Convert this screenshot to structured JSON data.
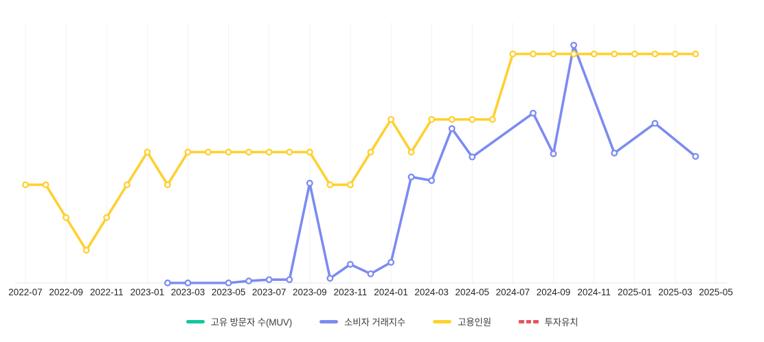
{
  "chart_data": {
    "type": "line",
    "title": "",
    "xlabel": "",
    "ylabel": "",
    "x": [
      "2022-07",
      "2022-08",
      "2022-09",
      "2022-10",
      "2022-11",
      "2022-12",
      "2023-01",
      "2023-02",
      "2023-03",
      "2023-04",
      "2023-05",
      "2023-06",
      "2023-07",
      "2023-08",
      "2023-09",
      "2023-10",
      "2023-11",
      "2023-12",
      "2024-01",
      "2024-02",
      "2024-03",
      "2024-04",
      "2024-05",
      "2024-06",
      "2024-07",
      "2024-08",
      "2024-09",
      "2024-10",
      "2024-11",
      "2024-12",
      "2025-01",
      "2025-02",
      "2025-03",
      "2025-04",
      "2025-05"
    ],
    "x_tick_step": 2,
    "x_tick_labels": [
      "2022-07",
      "2022-09",
      "2022-11",
      "2023-01",
      "2023-03",
      "2023-05",
      "2023-07",
      "2023-09",
      "2023-11",
      "2024-01",
      "2024-03",
      "2024-05",
      "2024-07",
      "2024-09",
      "2024-11",
      "2025-01",
      "2025-03",
      "2025-05"
    ],
    "ylim": [
      0,
      8
    ],
    "y_axis_labels_visible": false,
    "grid": "vertical",
    "grid_color": "#f1f1f4",
    "axis_line_color": "#e4e4e8",
    "tick_label_color": "#252525",
    "background": "#ffffff",
    "legend_position": "bottom",
    "marker": "open-circle",
    "series": [
      {
        "key": "unique-visitors-muv",
        "name": "고유 방문자 수(MUV)",
        "color": "#11c79c",
        "style": "solid",
        "values": [
          null,
          null,
          null,
          null,
          null,
          null,
          null,
          null,
          null,
          null,
          null,
          null,
          null,
          null,
          null,
          null,
          null,
          null,
          null,
          null,
          null,
          null,
          null,
          null,
          null,
          null,
          null,
          null,
          null,
          null,
          null,
          null,
          null,
          null,
          null
        ]
      },
      {
        "key": "consumer-transaction-index",
        "name": "소비자 거래지수",
        "color": "#7b8bf2",
        "style": "solid",
        "values": [
          null,
          null,
          null,
          null,
          null,
          null,
          null,
          0,
          0,
          null,
          0,
          0.06,
          0.1,
          0.1,
          3.05,
          0.14,
          0.57,
          0.28,
          0.63,
          3.24,
          3.13,
          4.72,
          3.85,
          null,
          null,
          5.19,
          3.95,
          7.27,
          null,
          3.97,
          null,
          4.88,
          null,
          3.87,
          null
        ]
      },
      {
        "key": "employment-count",
        "name": "고용인원",
        "color": "#ffd02e",
        "style": "solid",
        "values": [
          3,
          3,
          2,
          1,
          2,
          3,
          4,
          3,
          4,
          4,
          4,
          4,
          4,
          4,
          4,
          3,
          3,
          4,
          5,
          4,
          5,
          5,
          5,
          5,
          7,
          7,
          7,
          7,
          7,
          7,
          7,
          7,
          7,
          7,
          null
        ]
      },
      {
        "key": "investment-attraction",
        "name": "투자유치",
        "color": "#e85460",
        "style": "dashed",
        "values": [
          null,
          null,
          null,
          null,
          null,
          null,
          null,
          null,
          null,
          null,
          null,
          null,
          null,
          null,
          null,
          null,
          null,
          null,
          null,
          null,
          null,
          null,
          null,
          null,
          null,
          null,
          null,
          null,
          null,
          null,
          null,
          null,
          null,
          null,
          null
        ]
      }
    ]
  }
}
